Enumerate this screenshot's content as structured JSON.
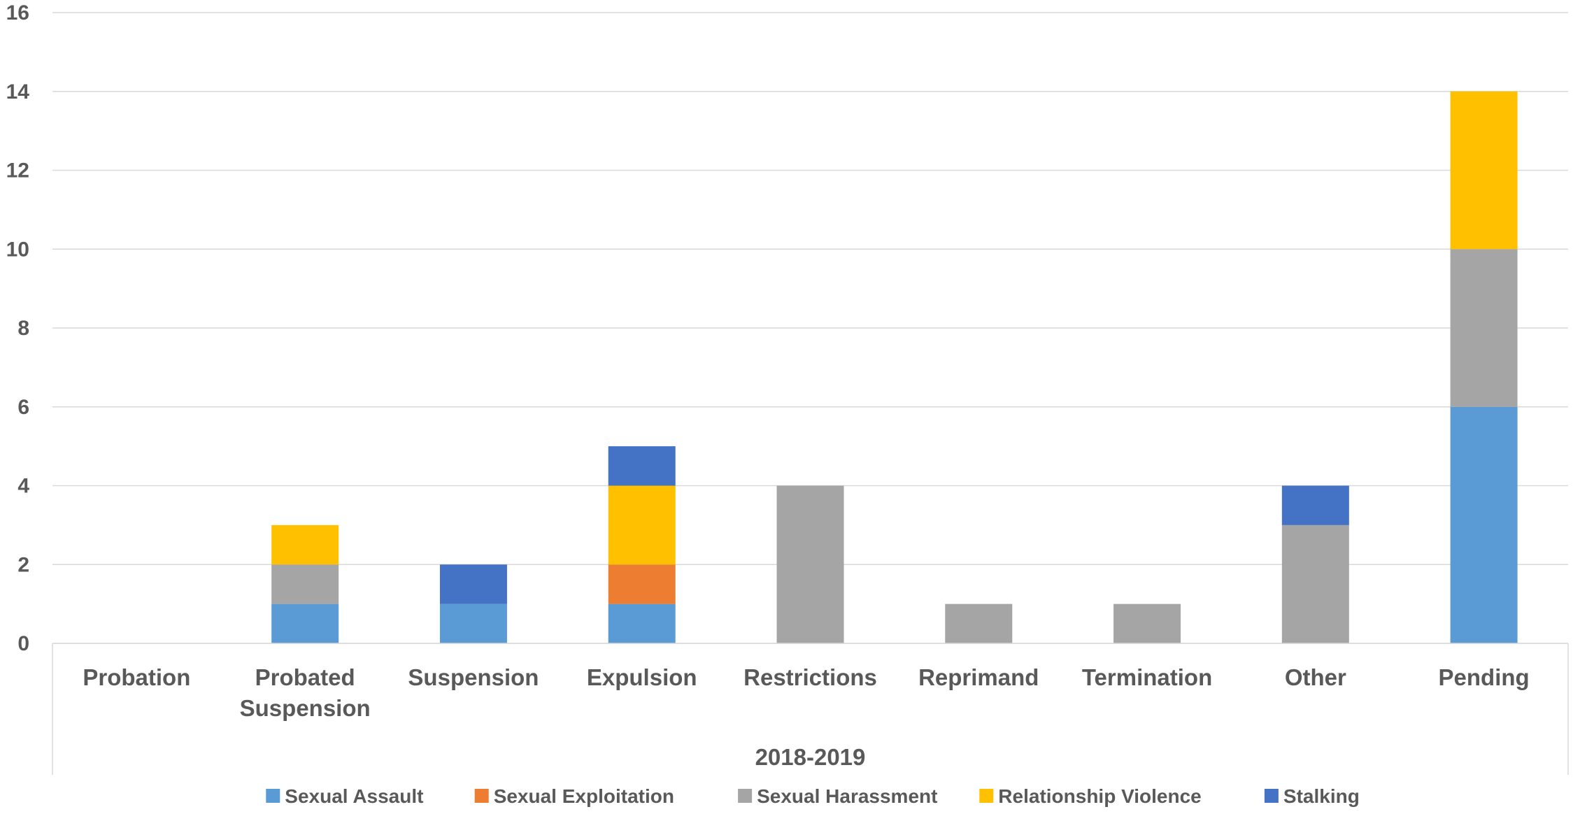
{
  "chart_data": {
    "type": "bar",
    "stacked": true,
    "title": "",
    "categories": [
      "Probation",
      "Probated Suspension",
      "Suspension",
      "Expulsion",
      "Restrictions",
      "Reprimand",
      "Termination",
      "Other",
      "Pending"
    ],
    "group_label": "2018-2019",
    "series": [
      {
        "name": "Sexual Assault",
        "color": "#5B9BD5",
        "values": [
          0,
          1,
          1,
          1,
          0,
          0,
          0,
          0,
          6
        ]
      },
      {
        "name": "Sexual Exploitation",
        "color": "#ED7D31",
        "values": [
          0,
          0,
          0,
          1,
          0,
          0,
          0,
          0,
          0
        ]
      },
      {
        "name": "Sexual Harassment",
        "color": "#A5A5A5",
        "values": [
          0,
          1,
          0,
          0,
          4,
          1,
          1,
          3,
          4
        ]
      },
      {
        "name": "Relationship Violence",
        "color": "#FFC000",
        "values": [
          0,
          1,
          0,
          2,
          0,
          0,
          0,
          0,
          4
        ]
      },
      {
        "name": "Stalking",
        "color": "#4472C4",
        "values": [
          0,
          0,
          1,
          1,
          0,
          0,
          0,
          1,
          0
        ]
      }
    ],
    "ylim": [
      0,
      16
    ],
    "yticks": [
      0,
      2,
      4,
      6,
      8,
      10,
      12,
      14,
      16
    ],
    "grid": true,
    "legend_position": "bottom"
  }
}
